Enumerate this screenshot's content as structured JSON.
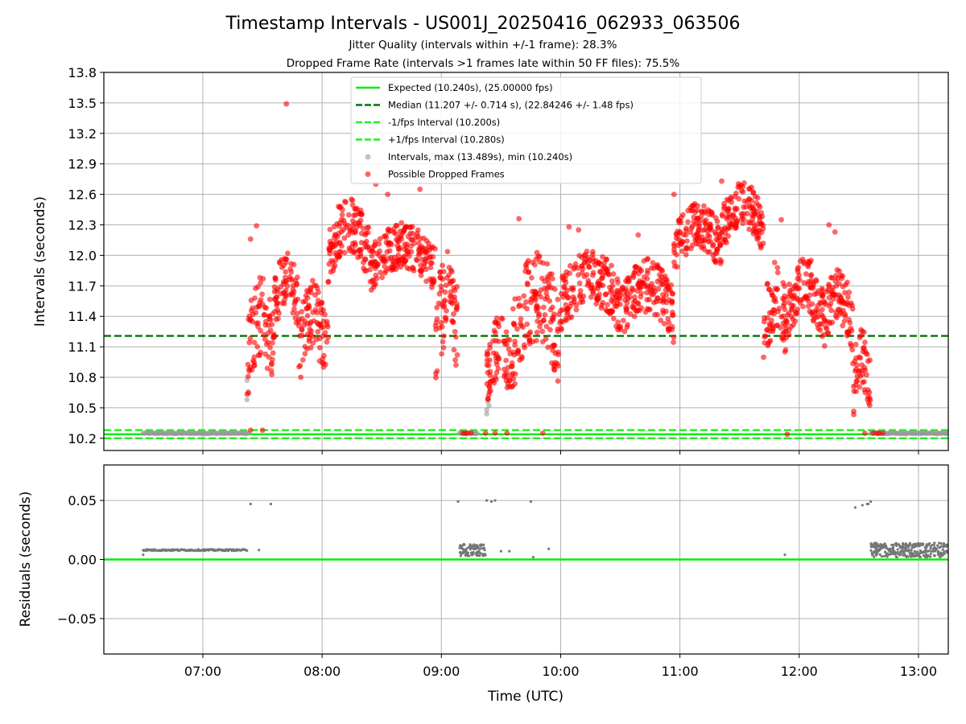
{
  "chart_data": [
    {
      "type": "scatter",
      "panel": "intervals",
      "title": "Timestamp Intervals - US001J_20250416_062933_063506",
      "subtitle_1": "Jitter Quality (intervals within +/-1 frame): 28.3%",
      "subtitle_2": "Dropped Frame Rate (intervals >1 frames late within 50 FF files): 75.5%",
      "xlabel": "",
      "ylabel": "Intervals (seconds)",
      "x_unit": "time (UTC, hours)",
      "xlim": [
        6.17,
        13.25
      ],
      "ylim": [
        10.08,
        13.8
      ],
      "yticks": [
        "10.2",
        "10.5",
        "10.8",
        "11.1",
        "11.4",
        "11.7",
        "12.0",
        "12.3",
        "12.6",
        "12.9",
        "13.2",
        "13.5",
        "13.8"
      ],
      "ytick_values": [
        10.2,
        10.5,
        10.8,
        11.1,
        11.4,
        11.7,
        12.0,
        12.3,
        12.6,
        12.9,
        13.2,
        13.5,
        13.8
      ],
      "xticks": [
        "07:00",
        "08:00",
        "09:00",
        "10:00",
        "11:00",
        "12:00",
        "13:00"
      ],
      "xtick_values": [
        7,
        8,
        9,
        10,
        11,
        12,
        13
      ],
      "grid": true,
      "legend_position": "upper center",
      "reference_lines": [
        {
          "name": "Expected (10.240s), (25.00000 fps)",
          "y": 10.24,
          "style": "solid",
          "color": "#00ee00"
        },
        {
          "name": "Median (11.207 +/- 0.714 s), (22.84246 +/- 1.48 fps)",
          "y": 11.207,
          "style": "dashed",
          "color": "#007700"
        },
        {
          "name": "-1/fps Interval (10.200s)",
          "y": 10.2,
          "style": "dashed",
          "color": "#22ee22"
        },
        {
          "name": "+1/fps Interval (10.280s)",
          "y": 10.28,
          "style": "dashed",
          "color": "#22ee22"
        }
      ],
      "series": [
        {
          "name": "Intervals, max (13.489s), min (10.240s)",
          "color": "#999999",
          "marker": "circle",
          "segments": [
            {
              "x_start": 6.5,
              "x_end": 7.38,
              "y": 10.25
            },
            {
              "x_start": 9.15,
              "x_end": 9.3,
              "y": 10.25
            },
            {
              "x_start": 12.6,
              "x_end": 13.25,
              "y": 10.25
            }
          ],
          "points": [
            [
              7.37,
              10.77
            ],
            [
              7.37,
              10.58
            ],
            [
              7.38,
              10.66
            ],
            [
              9.38,
              10.48
            ],
            [
              9.38,
              10.44
            ],
            [
              9.39,
              10.56
            ],
            [
              9.4,
              10.52
            ]
          ]
        },
        {
          "name": "Possible Dropped Frames",
          "color": "#ff0000",
          "marker": "circle",
          "clusters": [
            {
              "x_start": 7.37,
              "x_end": 7.6,
              "y_start": 10.5,
              "y_end": 11.4
            },
            {
              "x_start": 7.6,
              "x_end": 7.8,
              "y_start": 11.2,
              "y_end": 11.8
            },
            {
              "x_start": 7.8,
              "x_end": 8.05,
              "y_start": 10.6,
              "y_end": 11.4
            },
            {
              "x_start": 8.05,
              "x_end": 8.4,
              "y_start": 11.7,
              "y_end": 12.3
            },
            {
              "x_start": 8.4,
              "x_end": 8.95,
              "y_start": 11.6,
              "y_end": 12.1
            },
            {
              "x_start": 8.95,
              "x_end": 9.15,
              "y_start": 10.6,
              "y_end": 11.6
            },
            {
              "x_start": 9.38,
              "x_end": 9.6,
              "y_start": 10.4,
              "y_end": 11.1
            },
            {
              "x_start": 9.6,
              "x_end": 10.0,
              "y_start": 10.6,
              "y_end": 11.6
            },
            {
              "x_start": 10.0,
              "x_end": 10.5,
              "y_start": 11.2,
              "y_end": 11.8
            },
            {
              "x_start": 10.5,
              "x_end": 10.95,
              "y_start": 11.1,
              "y_end": 11.7
            },
            {
              "x_start": 10.95,
              "x_end": 11.35,
              "y_start": 11.8,
              "y_end": 12.3
            },
            {
              "x_start": 11.35,
              "x_end": 11.7,
              "y_start": 12.0,
              "y_end": 12.5
            },
            {
              "x_start": 11.7,
              "x_end": 11.9,
              "y_start": 10.8,
              "y_end": 11.6
            },
            {
              "x_start": 11.9,
              "x_end": 12.2,
              "y_start": 11.1,
              "y_end": 11.7
            },
            {
              "x_start": 12.2,
              "x_end": 12.45,
              "y_start": 11.0,
              "y_end": 11.6
            },
            {
              "x_start": 12.45,
              "x_end": 12.6,
              "y_start": 10.3,
              "y_end": 11.0
            }
          ],
          "points": [
            [
              7.7,
              13.49
            ],
            [
              7.4,
              12.16
            ],
            [
              7.45,
              12.29
            ],
            [
              8.45,
              12.7
            ],
            [
              8.55,
              12.6
            ],
            [
              8.82,
              12.65
            ],
            [
              9.65,
              12.36
            ],
            [
              9.37,
              10.25
            ],
            [
              9.45,
              10.25
            ],
            [
              9.55,
              10.25
            ],
            [
              9.85,
              10.25
            ],
            [
              7.4,
              10.28
            ],
            [
              7.5,
              10.28
            ],
            [
              10.95,
              12.6
            ],
            [
              11.35,
              12.73
            ],
            [
              11.5,
              12.68
            ],
            [
              11.6,
              12.67
            ],
            [
              11.85,
              12.35
            ],
            [
              12.1,
              11.95
            ],
            [
              12.25,
              12.3
            ],
            [
              12.3,
              12.23
            ],
            [
              11.9,
              10.24
            ],
            [
              12.55,
              10.25
            ],
            [
              12.62,
              10.25
            ],
            [
              12.65,
              10.25
            ],
            [
              12.67,
              10.25
            ],
            [
              12.7,
              10.25
            ],
            [
              9.18,
              10.25
            ],
            [
              9.2,
              10.25
            ],
            [
              9.22,
              10.25
            ],
            [
              9.25,
              10.25
            ],
            [
              10.65,
              12.2
            ],
            [
              10.15,
              12.25
            ],
            [
              10.07,
              12.28
            ]
          ]
        }
      ],
      "legend": [
        "Expected (10.240s), (25.00000 fps)",
        "Median (11.207 +/- 0.714 s), (22.84246 +/- 1.48 fps)",
        "-1/fps Interval (10.200s)",
        "+1/fps Interval (10.280s)",
        "Intervals, max (13.489s), min (10.240s)",
        "Possible Dropped Frames"
      ]
    },
    {
      "type": "scatter",
      "panel": "residuals",
      "xlabel": "Time (UTC)",
      "ylabel": "Residuals (seconds)",
      "xlim": [
        6.17,
        13.25
      ],
      "ylim": [
        -0.08,
        0.08
      ],
      "yticks": [
        "0.05",
        "0.00",
        "−0.05"
      ],
      "ytick_values": [
        0.05,
        0.0,
        -0.05
      ],
      "xticks": [
        "07:00",
        "08:00",
        "09:00",
        "10:00",
        "11:00",
        "12:00",
        "13:00"
      ],
      "xtick_values": [
        7,
        8,
        9,
        10,
        11,
        12,
        13
      ],
      "grid": true,
      "reference_lines": [
        {
          "y": 0.0,
          "style": "solid",
          "color": "#00ee00"
        }
      ],
      "series": [
        {
          "color": "#777777",
          "marker": "dot",
          "segments": [
            {
              "x_start": 6.5,
              "x_end": 7.37,
              "y": 0.008
            },
            {
              "x_start": 9.15,
              "x_end": 9.37,
              "y": 0.008,
              "spread": 0.005
            },
            {
              "x_start": 12.6,
              "x_end": 13.25,
              "y": 0.008,
              "spread": 0.006
            }
          ],
          "points": [
            [
              6.5,
              0.004
            ],
            [
              7.4,
              0.047
            ],
            [
              7.47,
              0.008
            ],
            [
              7.57,
              0.047
            ],
            [
              9.14,
              0.049
            ],
            [
              9.38,
              0.05
            ],
            [
              9.42,
              0.049
            ],
            [
              9.45,
              0.05
            ],
            [
              9.5,
              0.007
            ],
            [
              9.57,
              0.007
            ],
            [
              9.75,
              0.049
            ],
            [
              9.77,
              0.002
            ],
            [
              9.9,
              0.009
            ],
            [
              11.88,
              0.004
            ],
            [
              12.47,
              0.044
            ],
            [
              12.53,
              0.046
            ],
            [
              12.57,
              0.047
            ],
            [
              12.6,
              0.049
            ],
            [
              12.58,
              0.047
            ]
          ]
        }
      ]
    }
  ]
}
